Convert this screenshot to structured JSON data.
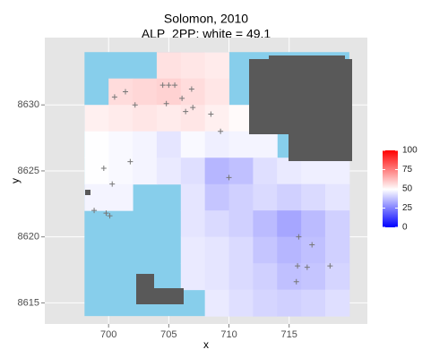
{
  "chart_data": {
    "type": "raster",
    "title": "Solomon, 2010",
    "subtitle": "ALP_2PP; white = 49.1",
    "x_label": "x",
    "y_label": "y",
    "xlim": [
      694.7,
      721.5
    ],
    "ylim": [
      8613.4,
      8635.1
    ],
    "xticks": [
      700,
      705,
      710,
      715
    ],
    "yticks": [
      8615,
      8620,
      8625,
      8630
    ],
    "grid": true,
    "sea_color": "#87ceeb",
    "nodata_color": "#595959",
    "x": [
      699,
      701,
      703,
      705,
      707,
      709,
      711,
      713,
      715,
      717,
      719
    ],
    "y": [
      8633,
      8631,
      8629,
      8627,
      8625,
      8623,
      8621,
      8619,
      8617,
      8615
    ],
    "values": [
      [
        null,
        null,
        null,
        55,
        54,
        53,
        null,
        null,
        null,
        null,
        null
      ],
      [
        null,
        56,
        57,
        58,
        56,
        54,
        null,
        null,
        null,
        null,
        null
      ],
      [
        52,
        53,
        54,
        53,
        54,
        52,
        50,
        null,
        null,
        null,
        null
      ],
      [
        49,
        48,
        47,
        44,
        48,
        46,
        47,
        47,
        null,
        null,
        null
      ],
      [
        49,
        48,
        47,
        45,
        43,
        35,
        37,
        43,
        45,
        46,
        46
      ],
      [
        47,
        47,
        null,
        null,
        44,
        38,
        40,
        42,
        40,
        42,
        44
      ],
      [
        null,
        null,
        null,
        null,
        44,
        42,
        40,
        36,
        32,
        36,
        40
      ],
      [
        null,
        null,
        null,
        null,
        45,
        44,
        42,
        38,
        35,
        37,
        40
      ],
      [
        null,
        null,
        null,
        null,
        45,
        44,
        42,
        40,
        37,
        38,
        41
      ],
      [
        null,
        null,
        null,
        null,
        null,
        45,
        43,
        41,
        40,
        41,
        43
      ]
    ],
    "points": {
      "color": "#777777",
      "x": [
        701.4,
        700.5,
        702.2,
        704.5,
        705.0,
        705.5,
        704.8,
        706.1,
        706.9,
        706.4,
        707.0,
        708.5,
        709.3,
        699.6,
        701.8,
        700.3,
        698.8,
        699.8,
        700.1,
        710.0,
        715.8,
        716.9,
        715.7,
        716.5,
        718.4,
        715.6
      ],
      "y": [
        8631.0,
        8630.6,
        8630.0,
        8631.5,
        8631.5,
        8631.5,
        8630.1,
        8630.5,
        8631.2,
        8629.5,
        8629.8,
        8629.3,
        8628.0,
        8625.2,
        8625.7,
        8624.0,
        8622.0,
        8621.8,
        8621.6,
        8624.5,
        8620.0,
        8619.4,
        8617.8,
        8617.7,
        8617.8,
        8616.6
      ]
    },
    "colorbar": {
      "low": "#0000ff",
      "mid": "#ffffff",
      "high": "#ff0000",
      "midpoint": 49.1,
      "limits": [
        0,
        100
      ],
      "ticks": [
        0,
        25,
        50,
        75,
        100
      ]
    }
  }
}
